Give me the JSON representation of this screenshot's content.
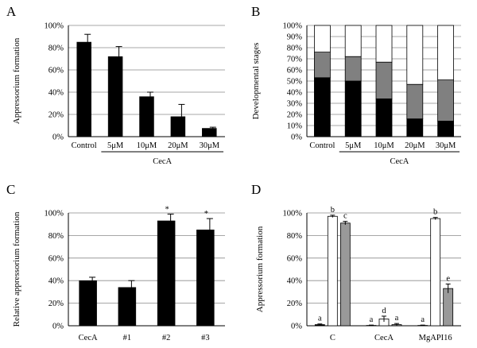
{
  "chart_data": [
    {
      "panel": "A",
      "type": "bar",
      "ylabel": "Appressorium formation",
      "categories": [
        "Control",
        "5μM",
        "10μM",
        "20μM",
        "30μM"
      ],
      "values": [
        85,
        72,
        36,
        18,
        7.5
      ],
      "errors": [
        7,
        9,
        4,
        11,
        1
      ],
      "ylim": [
        0,
        100
      ],
      "yticks": [
        "0%",
        "20%",
        "40%",
        "60%",
        "80%",
        "100%"
      ],
      "grid": true,
      "group_label": "CecA",
      "bar_color": "#000000"
    },
    {
      "panel": "B",
      "type": "bar",
      "stacked": true,
      "ylabel": "Developmental stages",
      "categories": [
        "Control",
        "5μM",
        "10μM",
        "20μM",
        "30μM"
      ],
      "series": [
        {
          "values": [
            53,
            50,
            34,
            16,
            14
          ],
          "color": "#000000"
        },
        {
          "values": [
            23,
            22,
            33,
            31,
            37
          ],
          "color": "#808080"
        },
        {
          "values": [
            24,
            28,
            33,
            53,
            49
          ],
          "color": "#ffffff"
        }
      ],
      "ylim": [
        0,
        100
      ],
      "yticks": [
        "0%",
        "10%",
        "20%",
        "30%",
        "40%",
        "50%",
        "60%",
        "70%",
        "80%",
        "90%",
        "100%"
      ],
      "grid": true,
      "group_label": "CecA"
    },
    {
      "panel": "C",
      "type": "bar",
      "ylabel": "Relative appressorium formation",
      "categories": [
        "CecA",
        "#1",
        "#2",
        "#3"
      ],
      "values": [
        40,
        34,
        93,
        85
      ],
      "errors": [
        3,
        6,
        6,
        10
      ],
      "annotations": [
        "",
        "",
        "*",
        "*"
      ],
      "ylim": [
        0,
        100
      ],
      "yticks": [
        "0%",
        "20%",
        "40%",
        "60%",
        "80%",
        "100%"
      ],
      "grid": true,
      "bar_color": "#000000"
    },
    {
      "panel": "D",
      "type": "bar",
      "ylabel": "Appressorium formation",
      "categories": [
        "C",
        "CecA",
        "MgAPI16"
      ],
      "series": [
        {
          "values": [
            1,
            0.3,
            0.3
          ],
          "errors": [
            0.6,
            0.3,
            0.3
          ],
          "labels": [
            "a",
            "a",
            "a"
          ],
          "color": "#000000"
        },
        {
          "values": [
            97,
            6,
            95
          ],
          "errors": [
            1,
            2.5,
            1
          ],
          "labels": [
            "b",
            "d",
            "b"
          ],
          "color": "#ffffff"
        },
        {
          "values": [
            91,
            1,
            33
          ],
          "errors": [
            1.5,
            1,
            4
          ],
          "labels": [
            "c",
            "a",
            "e"
          ],
          "color": "#999999"
        }
      ],
      "ylim": [
        0,
        100
      ],
      "yticks": [
        "0%",
        "20%",
        "40%",
        "60%",
        "80%",
        "100%"
      ],
      "grid": true
    }
  ]
}
